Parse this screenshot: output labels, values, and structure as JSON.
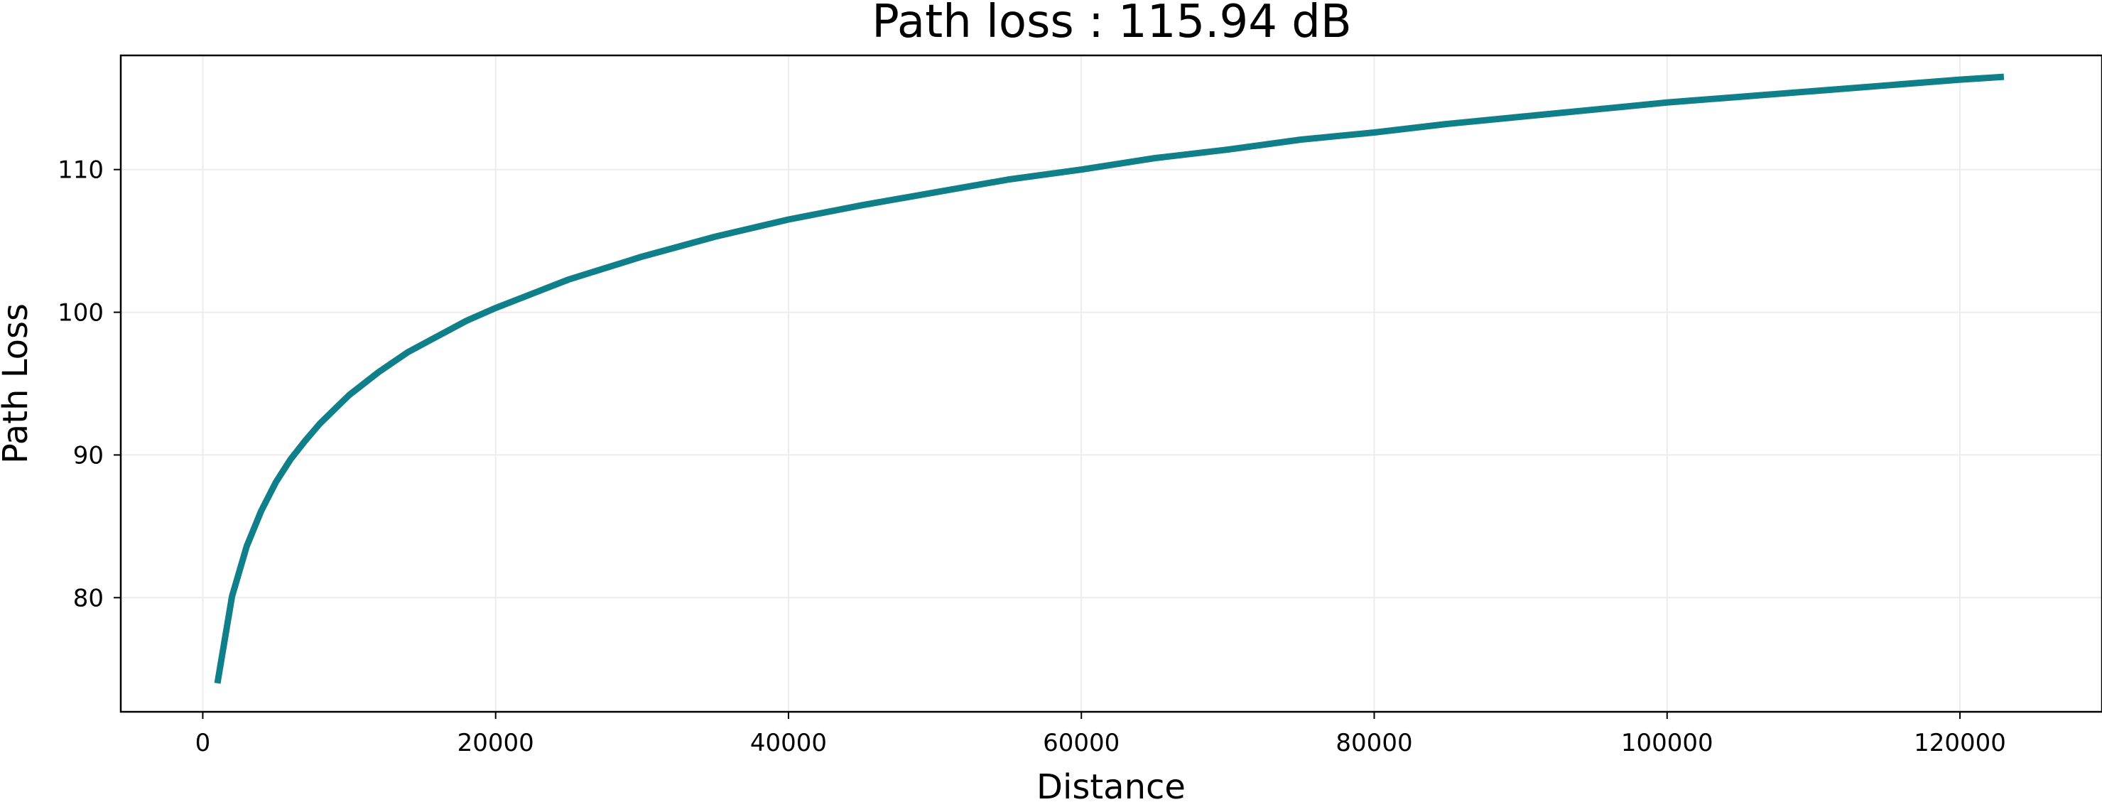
{
  "chart_data": {
    "type": "line",
    "title": "Path loss : 115.94 dB",
    "xlabel": "Distance",
    "ylabel": "Path Loss",
    "xlim": [
      -5600,
      129700
    ],
    "ylim": [
      72,
      118
    ],
    "x_ticks": [
      0,
      20000,
      40000,
      60000,
      80000,
      100000,
      120000
    ],
    "x_tick_labels": [
      "0",
      "20000",
      "40000",
      "60000",
      "80000",
      "100000",
      "120000"
    ],
    "y_ticks": [
      80,
      90,
      100,
      110
    ],
    "y_tick_labels": [
      "80",
      "90",
      "100",
      110
    ],
    "grid": true,
    "line_color": "#0f7f8a",
    "series": [
      {
        "x": [
          1000,
          2000,
          3000,
          4000,
          5000,
          6000,
          7000,
          8000,
          9000,
          10000,
          12000,
          14000,
          16000,
          18000,
          20000,
          25000,
          30000,
          35000,
          40000,
          45000,
          50000,
          55000,
          60000,
          65000,
          70000,
          75000,
          80000,
          85000,
          90000,
          95000,
          100000,
          105000,
          110000,
          115000,
          120000,
          123000
        ],
        "y": [
          74.0,
          80.1,
          83.6,
          86.1,
          88.1,
          89.7,
          91.0,
          92.2,
          93.2,
          94.2,
          95.8,
          97.2,
          98.3,
          99.4,
          100.3,
          102.3,
          103.9,
          105.3,
          106.5,
          107.5,
          108.4,
          109.3,
          110.0,
          110.8,
          111.4,
          112.1,
          112.6,
          113.2,
          113.7,
          114.2,
          114.7,
          115.1,
          115.5,
          115.9,
          116.3,
          116.5
        ]
      }
    ]
  }
}
